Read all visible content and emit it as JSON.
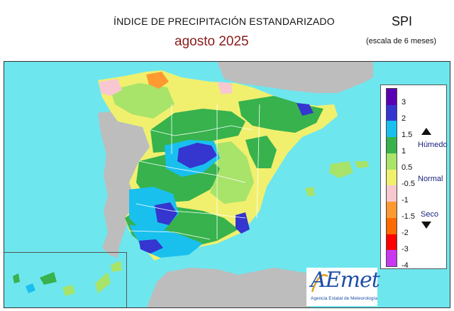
{
  "header": {
    "title": "ÍNDICE DE PRECIPITACIÓN ESTANDARIZADO",
    "subtitle": "agosto  2025",
    "index_name": "SPI",
    "scale_note": "(escala de 6 meses)"
  },
  "legend": {
    "ticks": [
      "3",
      "2",
      "1.5",
      "1",
      "0.5",
      "-0.5",
      "-1",
      "-1.5",
      "-2",
      "-3",
      "-4"
    ],
    "categories": {
      "wet": "Húmedo",
      "normal": "Normal",
      "dry": "Seco"
    },
    "colors": [
      "#5a00b4",
      "#3535d0",
      "#19c0ee",
      "#37b24d",
      "#a8e36a",
      "#f0f06e",
      "#f8c8d0",
      "#ff9a30",
      "#ff6a00",
      "#ff0000",
      "#c838ee"
    ]
  },
  "logo": {
    "name": "AEmet",
    "tagline": "Agencia Estatal de Meteorología"
  },
  "colors": {
    "sea": "#6ee6ee",
    "land_foreign": "#bdbdbd",
    "border": "#ffffff"
  }
}
